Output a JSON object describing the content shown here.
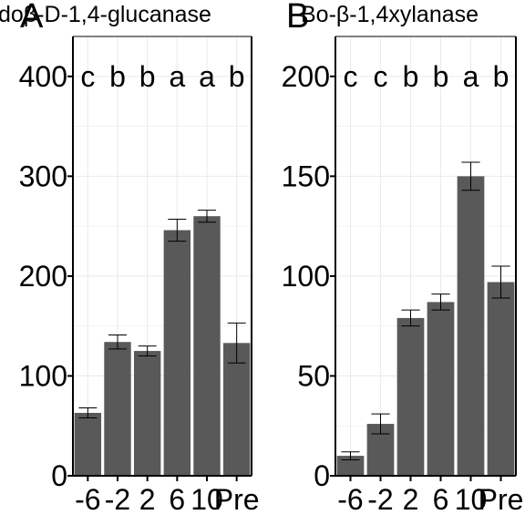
{
  "chart_data": [
    {
      "type": "bar",
      "panel": "A",
      "title": "doβ-D-1,4-glucanase",
      "categories": [
        "-6",
        "-2",
        "2",
        "6",
        "10",
        "Pre"
      ],
      "values": [
        63,
        134,
        125,
        246,
        260,
        133
      ],
      "errors": [
        5,
        7,
        5,
        11,
        6,
        20
      ],
      "significance": [
        "c",
        "b",
        "b",
        "a",
        "a",
        "b"
      ],
      "ylim": [
        0,
        400
      ],
      "yticks": [
        "0",
        "100",
        "200",
        "300",
        "400"
      ],
      "grid": true,
      "bar_color": "#595959"
    },
    {
      "type": "bar",
      "panel": "B",
      "title": "Bo-β-1,4xylanase",
      "categories": [
        "-6",
        "-2",
        "2",
        "6",
        "10",
        "Pre"
      ],
      "values": [
        10,
        26,
        79,
        87,
        150,
        97
      ],
      "errors": [
        2,
        5,
        4,
        4,
        7,
        8
      ],
      "significance": [
        "c",
        "c",
        "b",
        "b",
        "a",
        "b"
      ],
      "ylim": [
        0,
        200
      ],
      "yticks": [
        "0",
        "50",
        "100",
        "150",
        "200"
      ],
      "grid": true,
      "bar_color": "#595959"
    }
  ]
}
